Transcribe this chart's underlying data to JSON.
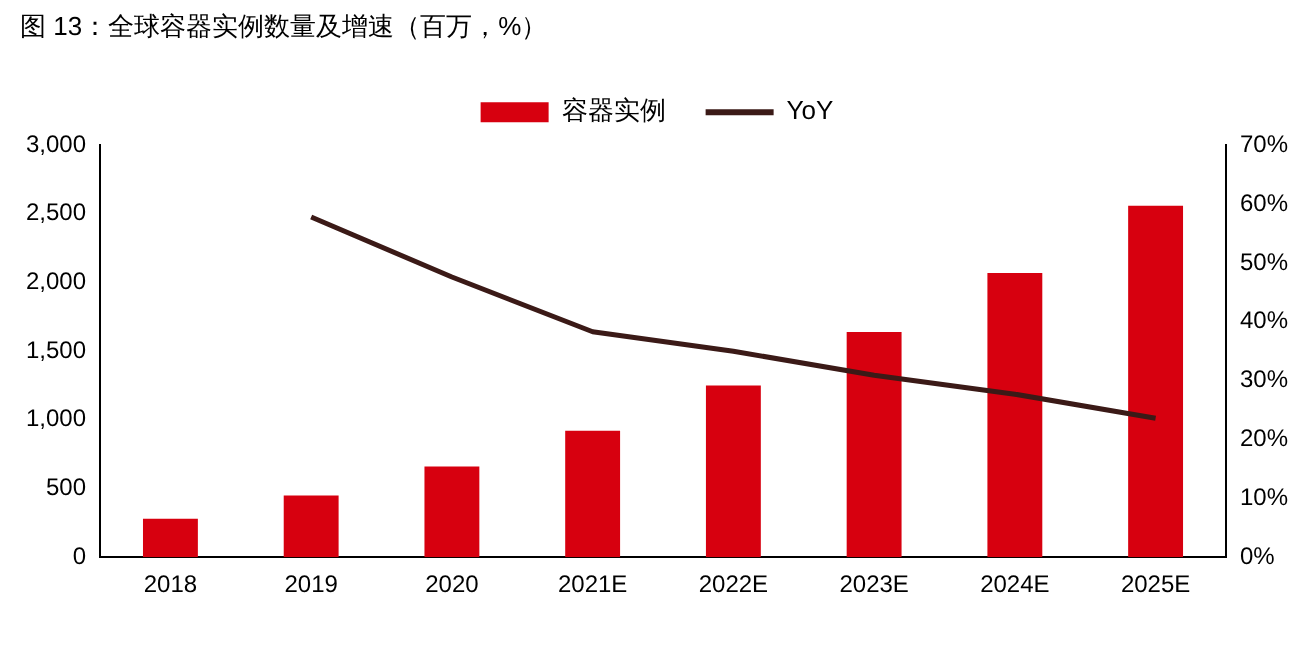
{
  "chart_data": {
    "type": "bar",
    "title": "图 13：全球容器实例数量及增速（百万，%）",
    "categories": [
      "2018",
      "2019",
      "2020",
      "2021E",
      "2022E",
      "2023E",
      "2024E",
      "2025E"
    ],
    "series": [
      {
        "name": "容器实例",
        "color": "#d7000f",
        "values": [
          280,
          450,
          660,
          920,
          1250,
          1640,
          2070,
          2560
        ]
      },
      {
        "name": "YoY",
        "type": "line",
        "axis": "y2",
        "color": "#3b1a17",
        "values": [
          null,
          57.8,
          47.6,
          38.3,
          35,
          30.9,
          27.7,
          23.6
        ]
      }
    ],
    "ylim": [
      0,
      3000
    ],
    "yticks": [
      0,
      {
        "value": 500,
        "label": "500"
      },
      {
        "value": 1000,
        "label": "1,000"
      },
      {
        "value": 1500,
        "label": "1,500"
      },
      {
        "value": 2000,
        "label": "2,000"
      },
      {
        "value": 2500,
        "label": "2,500"
      },
      {
        "value": 3000,
        "label": "3,000"
      }
    ],
    "y2lim": [
      0,
      70
    ],
    "y2ticks": [
      {
        "value": 0,
        "label": "0%"
      },
      {
        "value": 10,
        "label": "10%"
      },
      {
        "value": 20,
        "label": "20%"
      },
      {
        "value": 30,
        "label": "30%"
      },
      {
        "value": 40,
        "label": "40%"
      },
      {
        "value": 50,
        "label": "50%"
      },
      {
        "value": 60,
        "label": "60%"
      },
      {
        "value": 70,
        "label": "70%"
      }
    ],
    "grid": false,
    "legend": "top",
    "marker": "none",
    "line_style": "solid"
  }
}
